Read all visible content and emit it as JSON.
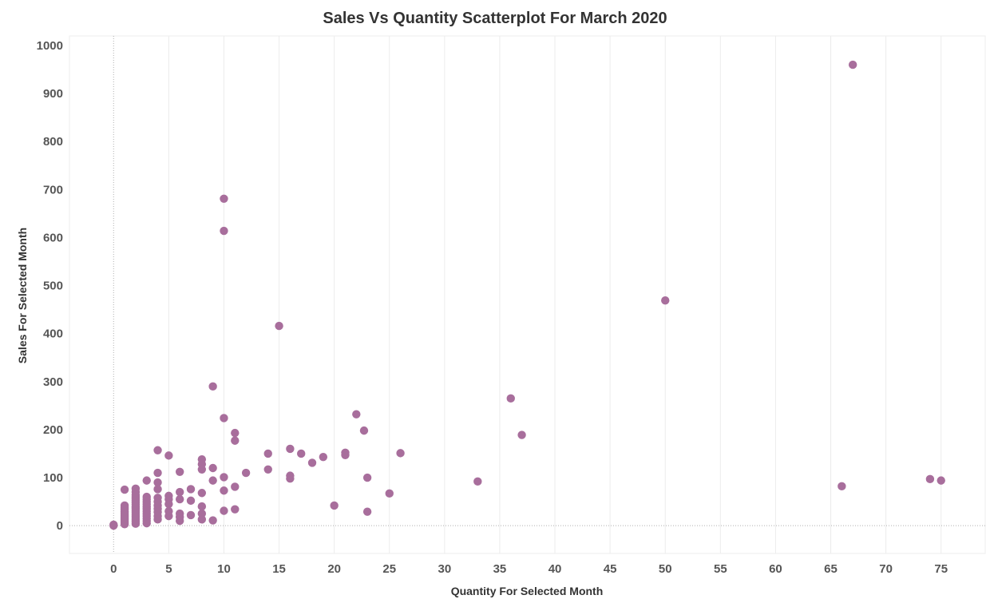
{
  "chart_data": {
    "type": "scatter",
    "title": "Sales Vs Quantity Scatterplot For March 2020",
    "xlabel": "Quantity For Selected Month",
    "ylabel": "Sales For Selected Month",
    "xlim": [
      -4,
      79
    ],
    "ylim": [
      -58,
      1020
    ],
    "xticks": [
      0,
      5,
      10,
      15,
      20,
      25,
      30,
      35,
      40,
      45,
      50,
      55,
      60,
      65,
      70,
      75
    ],
    "yticks": [
      0,
      100,
      200,
      300,
      400,
      500,
      600,
      700,
      800,
      900,
      1000
    ],
    "grid": true,
    "marker_color": "#a86e9c",
    "points": [
      {
        "x": 0,
        "y": 0
      },
      {
        "x": 0,
        "y": 2
      },
      {
        "x": 1,
        "y": 75
      },
      {
        "x": 1,
        "y": 42
      },
      {
        "x": 1,
        "y": 38
      },
      {
        "x": 1,
        "y": 34
      },
      {
        "x": 1,
        "y": 30
      },
      {
        "x": 1,
        "y": 27
      },
      {
        "x": 1,
        "y": 24
      },
      {
        "x": 1,
        "y": 21
      },
      {
        "x": 1,
        "y": 18
      },
      {
        "x": 1,
        "y": 15
      },
      {
        "x": 1,
        "y": 12
      },
      {
        "x": 1,
        "y": 9
      },
      {
        "x": 1,
        "y": 6
      },
      {
        "x": 1,
        "y": 3
      },
      {
        "x": 2,
        "y": 77
      },
      {
        "x": 2,
        "y": 70
      },
      {
        "x": 2,
        "y": 64
      },
      {
        "x": 2,
        "y": 60
      },
      {
        "x": 2,
        "y": 56
      },
      {
        "x": 2,
        "y": 52
      },
      {
        "x": 2,
        "y": 48
      },
      {
        "x": 2,
        "y": 44
      },
      {
        "x": 2,
        "y": 40
      },
      {
        "x": 2,
        "y": 36
      },
      {
        "x": 2,
        "y": 32
      },
      {
        "x": 2,
        "y": 28
      },
      {
        "x": 2,
        "y": 24
      },
      {
        "x": 2,
        "y": 20
      },
      {
        "x": 2,
        "y": 16
      },
      {
        "x": 2,
        "y": 12
      },
      {
        "x": 2,
        "y": 8
      },
      {
        "x": 2,
        "y": 4
      },
      {
        "x": 3,
        "y": 94
      },
      {
        "x": 3,
        "y": 60
      },
      {
        "x": 3,
        "y": 55
      },
      {
        "x": 3,
        "y": 50
      },
      {
        "x": 3,
        "y": 45
      },
      {
        "x": 3,
        "y": 40
      },
      {
        "x": 3,
        "y": 35
      },
      {
        "x": 3,
        "y": 30
      },
      {
        "x": 3,
        "y": 25
      },
      {
        "x": 3,
        "y": 20
      },
      {
        "x": 3,
        "y": 15
      },
      {
        "x": 3,
        "y": 10
      },
      {
        "x": 3,
        "y": 5
      },
      {
        "x": 4,
        "y": 157
      },
      {
        "x": 4,
        "y": 110
      },
      {
        "x": 4,
        "y": 90
      },
      {
        "x": 4,
        "y": 76
      },
      {
        "x": 4,
        "y": 58
      },
      {
        "x": 4,
        "y": 50
      },
      {
        "x": 4,
        "y": 42
      },
      {
        "x": 4,
        "y": 35
      },
      {
        "x": 4,
        "y": 28
      },
      {
        "x": 4,
        "y": 20
      },
      {
        "x": 4,
        "y": 13
      },
      {
        "x": 5,
        "y": 146
      },
      {
        "x": 5,
        "y": 62
      },
      {
        "x": 5,
        "y": 55
      },
      {
        "x": 5,
        "y": 45
      },
      {
        "x": 5,
        "y": 30
      },
      {
        "x": 5,
        "y": 20
      },
      {
        "x": 6,
        "y": 112
      },
      {
        "x": 6,
        "y": 70
      },
      {
        "x": 6,
        "y": 55
      },
      {
        "x": 6,
        "y": 25
      },
      {
        "x": 6,
        "y": 18
      },
      {
        "x": 6,
        "y": 10
      },
      {
        "x": 7,
        "y": 76
      },
      {
        "x": 7,
        "y": 52
      },
      {
        "x": 7,
        "y": 22
      },
      {
        "x": 8,
        "y": 138
      },
      {
        "x": 8,
        "y": 128
      },
      {
        "x": 8,
        "y": 117
      },
      {
        "x": 8,
        "y": 68
      },
      {
        "x": 8,
        "y": 40
      },
      {
        "x": 8,
        "y": 25
      },
      {
        "x": 8,
        "y": 13
      },
      {
        "x": 9,
        "y": 290
      },
      {
        "x": 9,
        "y": 120
      },
      {
        "x": 9,
        "y": 94
      },
      {
        "x": 9,
        "y": 11
      },
      {
        "x": 10,
        "y": 681
      },
      {
        "x": 10,
        "y": 614
      },
      {
        "x": 10,
        "y": 224
      },
      {
        "x": 10,
        "y": 101
      },
      {
        "x": 10,
        "y": 73
      },
      {
        "x": 10,
        "y": 31
      },
      {
        "x": 11,
        "y": 193
      },
      {
        "x": 11,
        "y": 177
      },
      {
        "x": 11,
        "y": 81
      },
      {
        "x": 11,
        "y": 34
      },
      {
        "x": 12,
        "y": 110
      },
      {
        "x": 14,
        "y": 150
      },
      {
        "x": 14,
        "y": 117
      },
      {
        "x": 15,
        "y": 416
      },
      {
        "x": 16,
        "y": 160
      },
      {
        "x": 16,
        "y": 104
      },
      {
        "x": 16,
        "y": 98
      },
      {
        "x": 17,
        "y": 150
      },
      {
        "x": 18,
        "y": 131
      },
      {
        "x": 19,
        "y": 143
      },
      {
        "x": 20,
        "y": 42
      },
      {
        "x": 21,
        "y": 152
      },
      {
        "x": 21,
        "y": 147
      },
      {
        "x": 22,
        "y": 232
      },
      {
        "x": 22.7,
        "y": 198
      },
      {
        "x": 23,
        "y": 100
      },
      {
        "x": 23,
        "y": 29
      },
      {
        "x": 25,
        "y": 67
      },
      {
        "x": 26,
        "y": 151
      },
      {
        "x": 33,
        "y": 92
      },
      {
        "x": 36,
        "y": 265
      },
      {
        "x": 37,
        "y": 189
      },
      {
        "x": 50,
        "y": 469
      },
      {
        "x": 66,
        "y": 82
      },
      {
        "x": 67,
        "y": 960
      },
      {
        "x": 74,
        "y": 97
      },
      {
        "x": 75,
        "y": 94
      }
    ]
  }
}
